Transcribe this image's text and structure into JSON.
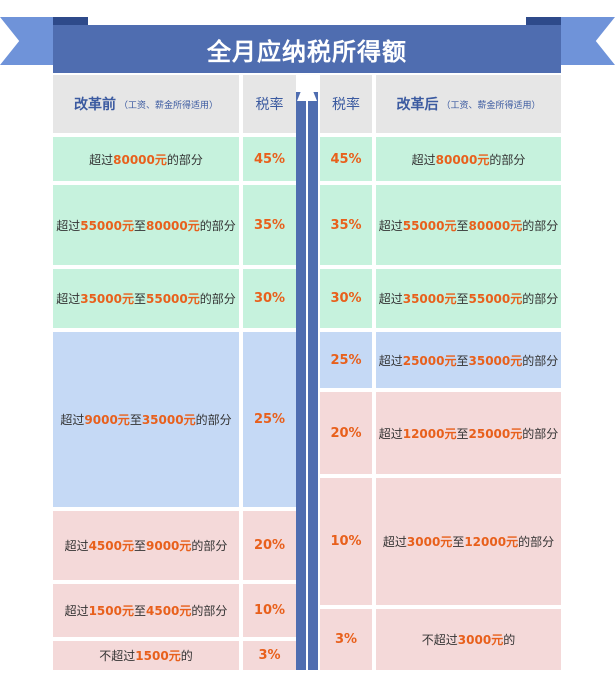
{
  "title": "全月应纳税所得额",
  "colors": {
    "banner": "#4f6db0",
    "ribbon": "#6f93d9",
    "highlight": "#e8601c",
    "green": "#c6f2dd",
    "blue": "#c5d9f5",
    "pink": "#f4d9d9",
    "header": "#e6e6e6"
  },
  "arrow_icon": "up-arrow",
  "left": {
    "header": {
      "title": "改革前",
      "note": "（工资、薪金所得适用）",
      "rate": "税率"
    },
    "rows": [
      {
        "rate": "45%",
        "desc": [
          {
            "t": "超过"
          },
          {
            "t": "80000元",
            "hl": true
          },
          {
            "t": "的部分"
          }
        ]
      },
      {
        "rate": "35%",
        "desc": [
          {
            "t": "超过"
          },
          {
            "t": "55000元",
            "hl": true
          },
          {
            "t": "至"
          },
          {
            "t": "80000元",
            "hl": true
          },
          {
            "t": "的部分"
          }
        ]
      },
      {
        "rate": "30%",
        "desc": [
          {
            "t": "超过"
          },
          {
            "t": "35000元",
            "hl": true
          },
          {
            "t": "至"
          },
          {
            "t": "55000元",
            "hl": true
          },
          {
            "t": "的部分"
          }
        ]
      },
      {
        "rate": "25%",
        "desc": [
          {
            "t": "超过"
          },
          {
            "t": "9000元",
            "hl": true
          },
          {
            "t": "至"
          },
          {
            "t": "35000元",
            "hl": true
          },
          {
            "t": "的部分"
          }
        ]
      },
      {
        "rate": "20%",
        "desc": [
          {
            "t": "超过"
          },
          {
            "t": "4500元",
            "hl": true
          },
          {
            "t": "至"
          },
          {
            "t": "9000元",
            "hl": true
          },
          {
            "t": "的部分"
          }
        ]
      },
      {
        "rate": "10%",
        "desc": [
          {
            "t": "超过"
          },
          {
            "t": "1500元",
            "hl": true
          },
          {
            "t": "至"
          },
          {
            "t": "4500元",
            "hl": true
          },
          {
            "t": "的部分"
          }
        ]
      },
      {
        "rate": "3%",
        "desc": [
          {
            "t": "不超过"
          },
          {
            "t": "1500元",
            "hl": true
          },
          {
            "t": "的"
          }
        ]
      }
    ]
  },
  "right": {
    "header": {
      "title": "改革后",
      "note": "（工资、薪金所得适用）",
      "rate": "税率"
    },
    "rows": [
      {
        "rate": "45%",
        "desc": [
          {
            "t": "超过"
          },
          {
            "t": "80000元",
            "hl": true
          },
          {
            "t": "的部分"
          }
        ]
      },
      {
        "rate": "35%",
        "desc": [
          {
            "t": "超过"
          },
          {
            "t": "55000元",
            "hl": true
          },
          {
            "t": "至"
          },
          {
            "t": "80000元",
            "hl": true
          },
          {
            "t": "的部分"
          }
        ]
      },
      {
        "rate": "30%",
        "desc": [
          {
            "t": "超过"
          },
          {
            "t": "35000元",
            "hl": true
          },
          {
            "t": "至"
          },
          {
            "t": "55000元",
            "hl": true
          },
          {
            "t": "的部分"
          }
        ]
      },
      {
        "rate": "25%",
        "desc": [
          {
            "t": "超过"
          },
          {
            "t": "25000元",
            "hl": true
          },
          {
            "t": "至"
          },
          {
            "t": "35000元",
            "hl": true
          },
          {
            "t": "的部分"
          }
        ]
      },
      {
        "rate": "20%",
        "desc": [
          {
            "t": "超过"
          },
          {
            "t": "12000元",
            "hl": true
          },
          {
            "t": "至"
          },
          {
            "t": "25000元",
            "hl": true
          },
          {
            "t": "的部分"
          }
        ]
      },
      {
        "rate": "10%",
        "desc": [
          {
            "t": "超过"
          },
          {
            "t": "3000元",
            "hl": true
          },
          {
            "t": "至"
          },
          {
            "t": "12000元",
            "hl": true
          },
          {
            "t": "的部分"
          }
        ]
      },
      {
        "rate": "3%",
        "desc": [
          {
            "t": "不超过"
          },
          {
            "t": "3000元",
            "hl": true
          },
          {
            "t": "的"
          }
        ]
      }
    ]
  }
}
